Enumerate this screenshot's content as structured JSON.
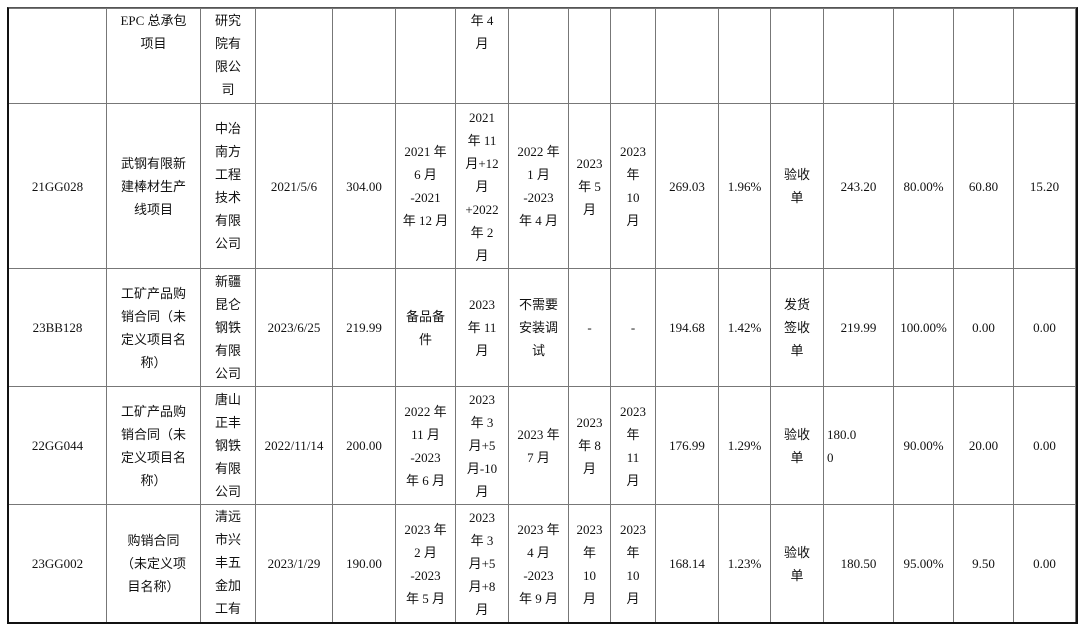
{
  "rows": [
    [
      "",
      "EPC 总承包\n项目",
      "研究\n院有\n限公\n司",
      "",
      "",
      "",
      "年 4\n月",
      "",
      "",
      "",
      "",
      "",
      "",
      "",
      "",
      "",
      ""
    ],
    [
      "21GG028",
      "武钢有限新\n建棒材生产\n线项目",
      "中冶\n南方\n工程\n技术\n有限\n公司",
      "2021/5/6",
      "304.00",
      "2021 年\n6 月\n-2021\n年 12 月",
      "2021\n年 11\n月+12\n月\n+2022\n年 2\n月",
      "2022 年\n1 月\n-2023\n年 4 月",
      "2023\n年 5\n月",
      "2023\n年\n10\n月",
      "269.03",
      "1.96%",
      "验收\n单",
      "243.20",
      "80.00%",
      "60.80",
      "15.20"
    ],
    [
      "23BB128",
      "工矿产品购\n销合同（未\n定义项目名\n称）",
      "新疆\n昆仑\n钢铁\n有限\n公司",
      "2023/6/25",
      "219.99",
      "备品备\n件",
      "2023\n年 11\n月",
      "不需要\n安装调\n试",
      "-",
      "-",
      "194.68",
      "1.42%",
      "发货\n签收\n单",
      "219.99",
      "100.00%",
      "0.00",
      "0.00"
    ],
    [
      "22GG044",
      "工矿产品购\n销合同（未\n定义项目名\n称）",
      "唐山\n正丰\n钢铁\n有限\n公司",
      "2022/11/14",
      "200.00",
      "2022 年\n11 月\n-2023\n年 6 月",
      "2023\n年 3\n月+5\n月-10\n月",
      "2023 年\n7 月",
      "2023\n年 8\n月",
      "2023\n年\n11\n月",
      "176.99",
      "1.29%",
      "验收\n单",
      "180.0\n0",
      "90.00%",
      "20.00",
      "0.00"
    ],
    [
      "23GG002",
      "购销合同\n（未定义项\n目名称）",
      "清远\n市兴\n丰五\n金加\n工有",
      "2023/1/29",
      "190.00",
      "2023 年\n2 月\n-2023\n年 5 月",
      "2023\n年 3\n月+5\n月+8\n月",
      "2023 年\n4 月\n-2023\n年 9 月",
      "2023\n年\n10\n月",
      "2023\n年\n10\n月",
      "168.14",
      "1.23%",
      "验收\n单",
      "180.50",
      "95.00%",
      "9.50",
      "0.00"
    ]
  ]
}
